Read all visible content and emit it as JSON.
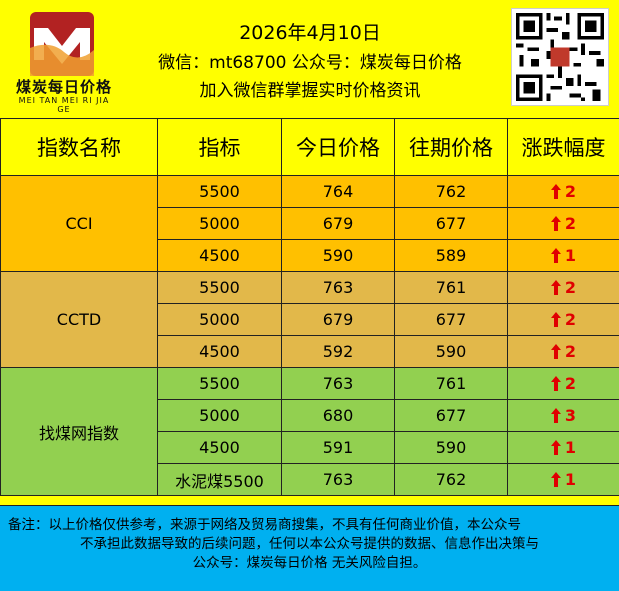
{
  "header": {
    "brand": "煤炭每日价格",
    "brand_en": "MEI TAN MEI RI JIA GE",
    "logo_letter": "M",
    "date": "2026年4月10日",
    "wechat_line": "微信：mt68700 公众号：煤炭每日价格",
    "join_line": "加入微信群掌握实时价格资讯"
  },
  "table": {
    "headers": [
      "指数名称",
      "指标",
      "今日价格",
      "往期价格",
      "涨跌幅度"
    ],
    "groups": [
      {
        "name": "CCI",
        "color": "#ffc000",
        "rows": [
          {
            "indicator": "5500",
            "today": "764",
            "previous": "762",
            "change": "2",
            "direction": "up"
          },
          {
            "indicator": "5000",
            "today": "679",
            "previous": "677",
            "change": "2",
            "direction": "up"
          },
          {
            "indicator": "4500",
            "today": "590",
            "previous": "589",
            "change": "1",
            "direction": "up"
          }
        ]
      },
      {
        "name": "CCTD",
        "color": "#e2b84a",
        "rows": [
          {
            "indicator": "5500",
            "today": "763",
            "previous": "761",
            "change": "2",
            "direction": "up"
          },
          {
            "indicator": "5000",
            "today": "679",
            "previous": "677",
            "change": "2",
            "direction": "up"
          },
          {
            "indicator": "4500",
            "today": "592",
            "previous": "590",
            "change": "2",
            "direction": "up"
          }
        ]
      },
      {
        "name": "找煤网指数",
        "color": "#92d050",
        "rows": [
          {
            "indicator": "5500",
            "today": "763",
            "previous": "761",
            "change": "2",
            "direction": "up"
          },
          {
            "indicator": "5000",
            "today": "680",
            "previous": "677",
            "change": "3",
            "direction": "up"
          },
          {
            "indicator": "4500",
            "today": "591",
            "previous": "590",
            "change": "1",
            "direction": "up"
          },
          {
            "indicator": "水泥煤5500",
            "today": "763",
            "previous": "762",
            "change": "1",
            "direction": "up"
          }
        ]
      }
    ]
  },
  "footer": {
    "line1": "备注：以上价格仅供参考，来源于网络及贸易商搜集，不具有任何商业价值，本公众号",
    "line2": "不承担此数据导致的后续问题，任何以本公众号提供的数据、信息作出决策与",
    "line3": "公众号：煤炭每日价格    无关风险自担。"
  },
  "colors": {
    "background": "#ffff00",
    "arrow": "#e00000",
    "footer": "#00b0f0"
  },
  "icons": {
    "logo": "sm-logo-icon",
    "qr": "qr-code-icon",
    "arrow": "up-arrow-icon"
  }
}
